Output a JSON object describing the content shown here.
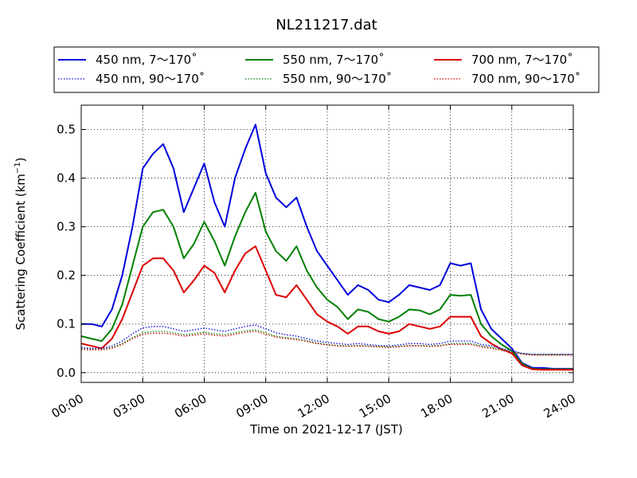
{
  "chart_data": {
    "type": "line",
    "title": "NL211217.dat",
    "xlabel": "Time on 2021-12-17 (JST)",
    "ylabel_main": "Scattering Coefficient (km",
    "ylabel_sup": "−1",
    "ylabel_end": ")",
    "xlim": [
      0,
      24
    ],
    "ylim": [
      -0.02,
      0.55
    ],
    "grid": true,
    "legend_position": "top",
    "x_ticks": [
      0,
      3,
      6,
      9,
      12,
      15,
      18,
      21,
      24
    ],
    "x_tick_labels": [
      "00:00",
      "03:00",
      "06:00",
      "09:00",
      "12:00",
      "15:00",
      "18:00",
      "21:00",
      "24:00"
    ],
    "y_ticks": [
      0.0,
      0.1,
      0.2,
      0.3,
      0.4,
      0.5
    ],
    "y_tick_labels": [
      "0.0",
      "0.1",
      "0.2",
      "0.3",
      "0.4",
      "0.5"
    ],
    "x": [
      0,
      0.5,
      1,
      1.5,
      2,
      2.5,
      3,
      3.5,
      4,
      4.5,
      5,
      5.5,
      6,
      6.5,
      7,
      7.5,
      8,
      8.5,
      9,
      9.5,
      10,
      10.5,
      11,
      11.5,
      12,
      12.5,
      13,
      13.5,
      14,
      14.5,
      15,
      15.5,
      16,
      16.5,
      17,
      17.5,
      18,
      18.5,
      19,
      19.5,
      20,
      20.5,
      21,
      21.5,
      22,
      22.5,
      23,
      23.5,
      24
    ],
    "series": [
      {
        "name": "450 nm, 7～170˚",
        "color": "#0000dd",
        "style": "solid",
        "values": [
          0.1,
          0.1,
          0.095,
          0.13,
          0.2,
          0.3,
          0.42,
          0.45,
          0.47,
          0.42,
          0.33,
          0.38,
          0.43,
          0.35,
          0.3,
          0.4,
          0.46,
          0.51,
          0.41,
          0.36,
          0.34,
          0.36,
          0.3,
          0.25,
          0.22,
          0.19,
          0.16,
          0.18,
          0.17,
          0.15,
          0.145,
          0.16,
          0.18,
          0.175,
          0.17,
          0.18,
          0.225,
          0.22,
          0.225,
          0.13,
          0.09,
          0.07,
          0.05,
          0.02,
          0.01,
          0.01,
          0.008,
          0.008,
          0.008
        ]
      },
      {
        "name": "550 nm, 7～170˚",
        "color": "#008000",
        "style": "solid",
        "values": [
          0.075,
          0.07,
          0.065,
          0.09,
          0.14,
          0.22,
          0.3,
          0.33,
          0.335,
          0.3,
          0.235,
          0.265,
          0.31,
          0.27,
          0.22,
          0.28,
          0.33,
          0.37,
          0.29,
          0.25,
          0.23,
          0.26,
          0.21,
          0.175,
          0.15,
          0.135,
          0.11,
          0.13,
          0.125,
          0.11,
          0.105,
          0.115,
          0.13,
          0.128,
          0.12,
          0.13,
          0.16,
          0.158,
          0.16,
          0.1,
          0.075,
          0.058,
          0.045,
          0.018,
          0.008,
          0.007,
          0.007,
          0.007,
          0.007
        ]
      },
      {
        "name": "700 nm, 7～170˚",
        "color": "#dd0000",
        "style": "solid",
        "values": [
          0.06,
          0.055,
          0.05,
          0.07,
          0.11,
          0.165,
          0.22,
          0.235,
          0.235,
          0.21,
          0.165,
          0.19,
          0.22,
          0.205,
          0.165,
          0.21,
          0.245,
          0.26,
          0.21,
          0.16,
          0.155,
          0.18,
          0.15,
          0.12,
          0.105,
          0.095,
          0.08,
          0.095,
          0.095,
          0.085,
          0.08,
          0.085,
          0.1,
          0.095,
          0.09,
          0.095,
          0.115,
          0.115,
          0.115,
          0.075,
          0.06,
          0.048,
          0.04,
          0.015,
          0.007,
          0.006,
          0.006,
          0.006,
          0.006
        ]
      },
      {
        "name": "450 nm, 90～170˚",
        "color": "#0000dd",
        "style": "dotted",
        "values": [
          0.052,
          0.05,
          0.05,
          0.055,
          0.065,
          0.08,
          0.092,
          0.095,
          0.095,
          0.09,
          0.085,
          0.088,
          0.092,
          0.088,
          0.085,
          0.09,
          0.095,
          0.098,
          0.09,
          0.082,
          0.078,
          0.075,
          0.07,
          0.065,
          0.062,
          0.06,
          0.058,
          0.06,
          0.058,
          0.056,
          0.055,
          0.057,
          0.06,
          0.06,
          0.058,
          0.06,
          0.065,
          0.065,
          0.065,
          0.058,
          0.055,
          0.05,
          0.045,
          0.04,
          0.038,
          0.038,
          0.038,
          0.038,
          0.038
        ]
      },
      {
        "name": "550 nm, 90～170˚",
        "color": "#008000",
        "style": "dotted",
        "values": [
          0.05,
          0.048,
          0.048,
          0.052,
          0.06,
          0.072,
          0.082,
          0.085,
          0.085,
          0.082,
          0.078,
          0.08,
          0.083,
          0.08,
          0.078,
          0.082,
          0.086,
          0.088,
          0.082,
          0.075,
          0.072,
          0.07,
          0.066,
          0.061,
          0.058,
          0.056,
          0.055,
          0.056,
          0.055,
          0.054,
          0.053,
          0.054,
          0.056,
          0.056,
          0.055,
          0.056,
          0.06,
          0.06,
          0.06,
          0.055,
          0.052,
          0.048,
          0.043,
          0.039,
          0.037,
          0.037,
          0.037,
          0.037,
          0.037
        ]
      },
      {
        "name": "700 nm, 90～170˚",
        "color": "#dd0000",
        "style": "dotted",
        "values": [
          0.048,
          0.047,
          0.047,
          0.05,
          0.058,
          0.07,
          0.079,
          0.081,
          0.081,
          0.079,
          0.075,
          0.077,
          0.08,
          0.077,
          0.075,
          0.079,
          0.083,
          0.085,
          0.079,
          0.073,
          0.07,
          0.068,
          0.064,
          0.06,
          0.057,
          0.055,
          0.054,
          0.055,
          0.054,
          0.053,
          0.052,
          0.053,
          0.055,
          0.055,
          0.054,
          0.055,
          0.058,
          0.058,
          0.058,
          0.053,
          0.05,
          0.046,
          0.042,
          0.038,
          0.036,
          0.036,
          0.036,
          0.036,
          0.036
        ]
      }
    ]
  }
}
